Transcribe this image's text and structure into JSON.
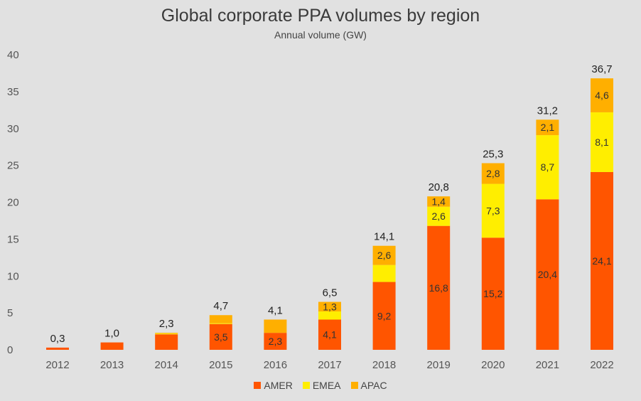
{
  "chart_data": {
    "type": "bar",
    "stacked": true,
    "title": "Global corporate PPA volumes by region",
    "subtitle": "Annual volume (GW)",
    "xlabel": "",
    "ylabel": "",
    "ylim": [
      0,
      40
    ],
    "yticks": [
      "0",
      "5",
      "10",
      "15",
      "20",
      "25",
      "30",
      "35",
      "40"
    ],
    "categories": [
      "2012",
      "2013",
      "2014",
      "2015",
      "2016",
      "2017",
      "2018",
      "2019",
      "2020",
      "2021",
      "2022"
    ],
    "series": [
      {
        "name": "AMER",
        "color": "#ff5500",
        "values": [
          0.3,
          1.0,
          2.1,
          3.5,
          2.3,
          4.1,
          9.2,
          16.8,
          15.2,
          20.4,
          24.1
        ],
        "labels": [
          "",
          "",
          "",
          "3,5",
          "2,3",
          "4,1",
          "9,2",
          "16,8",
          "15,2",
          "20,4",
          "24,1"
        ]
      },
      {
        "name": "EMEA",
        "color": "#ffee00",
        "values": [
          0.0,
          0.0,
          0.1,
          0.1,
          0.0,
          1.1,
          2.3,
          2.6,
          7.3,
          8.7,
          8.1
        ],
        "labels": [
          "",
          "",
          "",
          "",
          "",
          "",
          "",
          "2,6",
          "7,3",
          "8,7",
          "8,1"
        ]
      },
      {
        "name": "APAC",
        "color": "#ffaf00",
        "values": [
          0.0,
          0.0,
          0.1,
          1.1,
          1.8,
          1.3,
          2.6,
          1.4,
          2.8,
          2.1,
          4.6
        ],
        "labels": [
          "",
          "",
          "",
          "",
          "",
          "1,3",
          "2,6",
          "1,4",
          "2,8",
          "2,1",
          "4,6"
        ]
      }
    ],
    "totals": [
      "0,3",
      "1,0",
      "2,3",
      "4,7",
      "4,1",
      "6,5",
      "14,1",
      "20,8",
      "25,3",
      "31,2",
      "36,7"
    ],
    "legend_position": "bottom",
    "grid": false
  }
}
